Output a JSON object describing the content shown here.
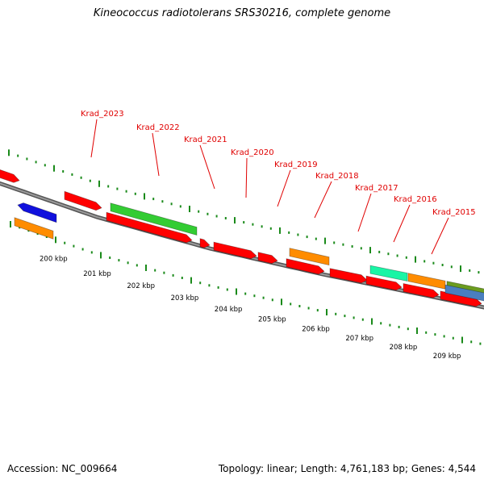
{
  "title": "Kineococcus radiotolerans SRS30216, complete genome",
  "footer": {
    "accession": "Accession: NC_009664",
    "summary": "Topology: linear; Length: 4,761,183 bp; Genes: 4,544"
  },
  "colors": {
    "background": "#ffffff",
    "backbone": "#7f7f7f",
    "tick": "#1a8a1a",
    "label": "#e00000",
    "red": "#ff0000",
    "green": "#33cc33",
    "orange": "#ff8c00",
    "blue": "#1010dd",
    "cyan": "#19f5a5",
    "olive": "#6b9c1f",
    "steelblue": "#4a7fbf"
  },
  "scale_labels": [
    "200 kbp",
    "201 kbp",
    "202 kbp",
    "203 kbp",
    "204 kbp",
    "205 kbp",
    "206 kbp",
    "207 kbp",
    "208 kbp",
    "209 kbp"
  ],
  "gene_labels": [
    "Krad_2023",
    "Krad_2022",
    "Krad_2021",
    "Krad_2020",
    "Krad_2019",
    "Krad_2018",
    "Krad_2017",
    "Krad_2016",
    "Krad_2015"
  ]
}
